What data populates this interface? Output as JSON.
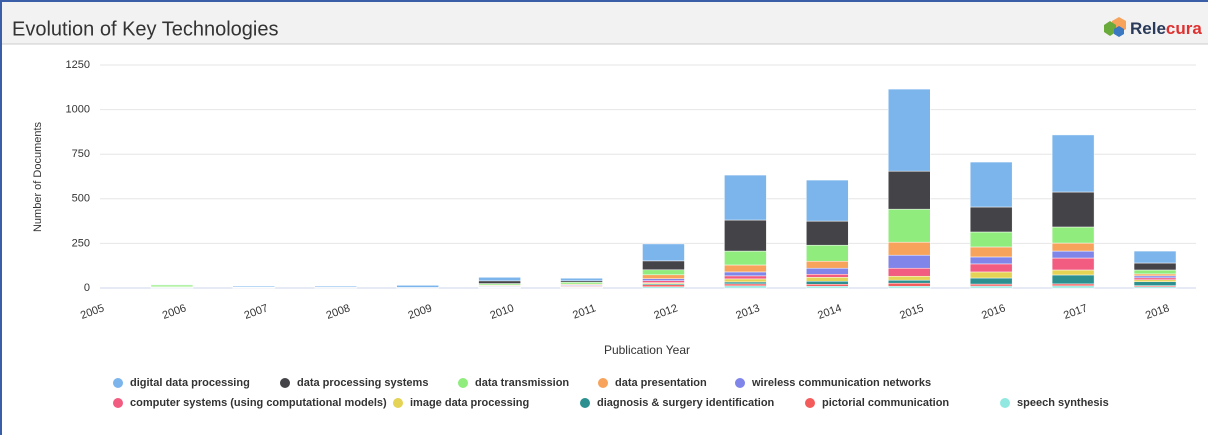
{
  "header": {
    "title": "Evolution of Key Technologies",
    "logo_left": "Rele",
    "logo_right": "cura"
  },
  "chart_data": {
    "type": "stacked-bar",
    "y_label": "Number of Documents",
    "x_label": "Publication Year",
    "categories": [
      "2005",
      "2006",
      "2007",
      "2008",
      "2009",
      "2010",
      "2011",
      "2012",
      "2013",
      "2014",
      "2015",
      "2016",
      "2017",
      "2018"
    ],
    "ylim": [
      0,
      1250
    ],
    "yticks": [
      0,
      250,
      500,
      750,
      1000,
      1250
    ],
    "grid": true,
    "series": [
      {
        "name": "digital data processing",
        "color": "#7cb5ec",
        "values": [
          0,
          3,
          6,
          6,
          12,
          20,
          15,
          95,
          252,
          230,
          460,
          252,
          320,
          67
        ]
      },
      {
        "name": "data processing systems",
        "color": "#434348",
        "values": [
          0,
          0,
          1,
          2,
          2,
          15,
          8,
          50,
          174,
          135,
          213,
          140,
          196,
          39
        ]
      },
      {
        "name": "data transmission",
        "color": "#90ed7d",
        "values": [
          0,
          10,
          2,
          2,
          1,
          8,
          10,
          28,
          78,
          90,
          185,
          84,
          90,
          22
        ]
      },
      {
        "name": "data presentation",
        "color": "#f7a35c",
        "values": [
          0,
          0,
          0,
          0,
          0,
          4,
          5,
          22,
          39,
          39,
          73,
          56,
          45,
          11
        ]
      },
      {
        "name": "wireless communication networks",
        "color": "#8085e9",
        "values": [
          0,
          0,
          0,
          0,
          0,
          4,
          5,
          11,
          22,
          34,
          73,
          39,
          39,
          11
        ]
      },
      {
        "name": "computer systems (using computational models)",
        "color": "#f15c80",
        "values": [
          0,
          0,
          0,
          0,
          0,
          3,
          4,
          11,
          17,
          17,
          45,
          45,
          67,
          11
        ]
      },
      {
        "name": "image data processing",
        "color": "#e4d354",
        "values": [
          0,
          2,
          0,
          0,
          0,
          2,
          3,
          6,
          17,
          22,
          22,
          34,
          28,
          11
        ]
      },
      {
        "name": "diagnosis & surgery identification",
        "color": "#2b908f",
        "values": [
          0,
          3,
          1,
          0,
          0,
          2,
          3,
          6,
          11,
          17,
          17,
          34,
          50,
          22
        ]
      },
      {
        "name": "pictorial communication",
        "color": "#f45b5b",
        "values": [
          0,
          0,
          0,
          0,
          0,
          1,
          1,
          11,
          11,
          11,
          17,
          11,
          11,
          6
        ]
      },
      {
        "name": "speech synthesis",
        "color": "#91e8e1",
        "values": [
          0,
          2,
          0,
          0,
          0,
          1,
          1,
          7,
          12,
          10,
          10,
          11,
          12,
          7
        ]
      }
    ]
  }
}
